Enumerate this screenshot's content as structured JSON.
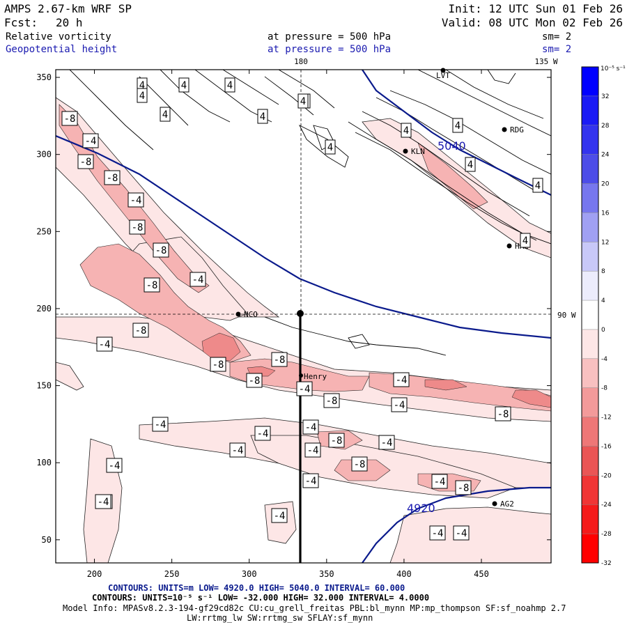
{
  "header": {
    "model": "AMPS 2.67-km WRF SP",
    "fcst_label": "Fcst:",
    "fcst_value": "20 h",
    "init": "Init: 12 UTC Sun 01 Feb 26",
    "valid": "Valid: 08 UTC Mon 02 Feb 26",
    "field1": "Relative vorticity",
    "field2": "Geopotential height",
    "field1_level": "at pressure =  500 hPa",
    "field2_level": "at pressure =  500 hPa",
    "field1_sm": "sm= 2",
    "field2_sm": "sm= 2"
  },
  "map_labels": {
    "lon_180": "180",
    "lon_135w": "135 W",
    "lon_90w": "90 W"
  },
  "colors": {
    "height_contour": "#0a1a8c",
    "vort_contour": "#000000",
    "neg_fill_light": "#fde6e6",
    "neg_fill_mid": "#f6b3b3",
    "neg_fill_strong": "#ee8a8a"
  },
  "stations": [
    {
      "name": "LVT"
    },
    {
      "name": "RDG"
    },
    {
      "name": "KLN"
    },
    {
      "name": "HRC"
    },
    {
      "name": "NCO"
    },
    {
      "name": "Henry"
    },
    {
      "name": "AG2"
    }
  ],
  "height_contour_labels": [
    "5040",
    "4920"
  ],
  "vort_labels": [
    "4",
    "4",
    "4",
    "4",
    "4",
    "4",
    "4",
    "4",
    "4",
    "4",
    "4",
    "4",
    "4",
    "4",
    "-8",
    "-4",
    "-8",
    "-8",
    "-4",
    "-8",
    "-8",
    "-4",
    "-8",
    "-8",
    "-4",
    "-8",
    "-8",
    "-8",
    "-4",
    "-4",
    "-8",
    "-4",
    "-8",
    "-4",
    "-4",
    "-4",
    "-8",
    "-4",
    "-4",
    "-4",
    "-8",
    "-4",
    "-4",
    "-4",
    "-8",
    "-8",
    "-4",
    "-4",
    "-4",
    "-4"
  ],
  "colorbar": {
    "unit": "10⁻⁵ s⁻¹",
    "ticks": [
      "32",
      "28",
      "24",
      "20",
      "16",
      "12",
      "8",
      "4",
      "0",
      "-4",
      "-8",
      "-12",
      "-16",
      "-20",
      "-24",
      "-28",
      "-32"
    ],
    "colors": [
      "#0000ff",
      "#1a1af5",
      "#3333ee",
      "#4d4de8",
      "#7777ee",
      "#a0a0f3",
      "#c8c8f8",
      "#ececfc",
      "#ffffff",
      "#fde6e6",
      "#f8c0c0",
      "#f39a9a",
      "#ee7777",
      "#ea5555",
      "#f03535",
      "#f51a1a",
      "#ff0000"
    ]
  },
  "chart_data": {
    "type": "contour_map",
    "x_ticks": [
      "200",
      "250",
      "300",
      "350",
      "400",
      "450"
    ],
    "y_ticks": [
      "350",
      "300",
      "250",
      "200",
      "150",
      "100",
      "50"
    ],
    "xlim": [
      175,
      495
    ],
    "ylim": [
      35,
      355
    ],
    "height_contours": [
      4920,
      5040
    ],
    "vorticity_range": [
      -32,
      32
    ]
  },
  "footer": {
    "line1": "CONTOURS:  UNITS=m  LOW=  4920.0       HIGH=  5040.0       INTERVAL=  60.000",
    "line2": "CONTOURS:  UNITS=10⁻⁵ s⁻¹  LOW= -32.000       HIGH=  32.000       INTERVAL=  4.0000",
    "line3": "Model Info: MPASv8.2.3-194-gf29cd82c CU:cu_grell_freitas PBL:bl_mynn MP:mp_thompson SF:sf_noahmp 2.7",
    "line4": "LW:rrtmg_lw SW:rrtmg_sw SFLAY:sf_mynn"
  }
}
